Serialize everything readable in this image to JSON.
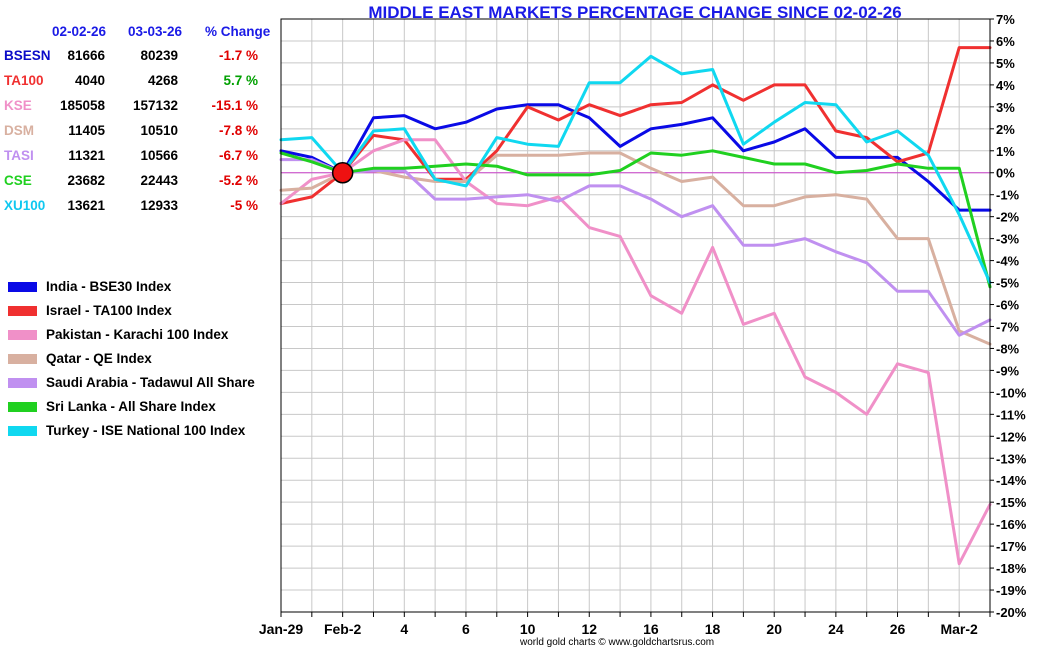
{
  "title": "MIDDLE EAST MARKETS PERCENTAGE CHANGE SINCE 02-02-26",
  "credit": "world gold charts © www.goldchartsrus.com",
  "stats": {
    "headers": {
      "d1": "02-02-26",
      "d2": "03-03-26",
      "pct": "% Change"
    },
    "rows": [
      {
        "symbol": "BSESN",
        "v1": "81666",
        "v2": "80239",
        "pct": "-1.7 %",
        "color": "#0a0ac8",
        "pct_color": "#e00000"
      },
      {
        "symbol": "TA100",
        "v1": "4040",
        "v2": "4268",
        "pct": "5.7 %",
        "color": "#f03030",
        "pct_color": "#00a000"
      },
      {
        "symbol": "KSE",
        "v1": "185058",
        "v2": "157132",
        "pct": "-15.1 %",
        "color": "#f090c8",
        "pct_color": "#e00000"
      },
      {
        "symbol": "DSM",
        "v1": "11405",
        "v2": "10510",
        "pct": "-7.8 %",
        "color": "#d8b0a0",
        "pct_color": "#e00000"
      },
      {
        "symbol": "TASI",
        "v1": "11321",
        "v2": "10566",
        "pct": "-6.7 %",
        "color": "#c090f0",
        "pct_color": "#e00000"
      },
      {
        "symbol": "CSE",
        "v1": "23682",
        "v2": "22443",
        "pct": "-5.2 %",
        "color": "#20d020",
        "pct_color": "#e00000"
      },
      {
        "symbol": "XU100",
        "v1": "13621",
        "v2": "12933",
        "pct": "-5 %",
        "color": "#10c8f0",
        "pct_color": "#e00000"
      }
    ]
  },
  "legend": [
    {
      "label": "India - BSE30 Index",
      "color": "#0a0ae6"
    },
    {
      "label": "Israel - TA100 Index",
      "color": "#f03030"
    },
    {
      "label": "Pakistan - Karachi 100 Index",
      "color": "#f090c8"
    },
    {
      "label": "Qatar - QE Index",
      "color": "#d8b0a0"
    },
    {
      "label": "Saudi Arabia - Tadawul All Share",
      "color": "#c090f0"
    },
    {
      "label": "Sri Lanka - All Share Index",
      "color": "#20d020"
    },
    {
      "label": "Turkey - ISE National 100 Index",
      "color": "#10d8f0"
    }
  ],
  "chart_data": {
    "type": "line",
    "title": "MIDDLE EAST MARKETS PERCENTAGE CHANGE SINCE 02-02-26",
    "xlabel": "",
    "ylabel": "",
    "x_range": [
      0,
      23
    ],
    "ylim": [
      -20,
      7
    ],
    "y_ticks": [
      7,
      6,
      5,
      4,
      3,
      2,
      1,
      0,
      -1,
      -2,
      -3,
      -4,
      -5,
      -6,
      -7,
      -8,
      -9,
      -10,
      -11,
      -12,
      -13,
      -14,
      -15,
      -16,
      -17,
      -18,
      -19,
      -20
    ],
    "y_tick_labels": [
      "7%",
      "6%",
      "5%",
      "4%",
      "3%",
      "2%",
      "1%",
      "0%",
      "-1%",
      "-2%",
      "-3%",
      "-4%",
      "-5%",
      "-6%",
      "-7%",
      "-8%",
      "-9%",
      "-10%",
      "-11%",
      "-12%",
      "-13%",
      "-14%",
      "-15%",
      "-16%",
      "-17%",
      "-18%",
      "-19%",
      "-20%"
    ],
    "x_ticks": [
      {
        "x": 0,
        "label": "Jan-29"
      },
      {
        "x": 2,
        "label": "Feb-2"
      },
      {
        "x": 4,
        "label": "4"
      },
      {
        "x": 6,
        "label": "6"
      },
      {
        "x": 8,
        "label": "10"
      },
      {
        "x": 10,
        "label": "12"
      },
      {
        "x": 12,
        "label": "16"
      },
      {
        "x": 14,
        "label": "18"
      },
      {
        "x": 16,
        "label": "20"
      },
      {
        "x": 18,
        "label": "24"
      },
      {
        "x": 20,
        "label": "26"
      },
      {
        "x": 22,
        "label": "Mar-2"
      }
    ],
    "origin_marker": {
      "x": 2,
      "y": 0
    },
    "zero_line_color": "#cc44cc",
    "grid": true,
    "legend_position": "left",
    "series": [
      {
        "name": "India - BSE30 Index",
        "color": "#0a0ae6",
        "values": [
          1.0,
          0.7,
          0.0,
          2.5,
          2.6,
          2.0,
          2.3,
          2.9,
          3.1,
          3.1,
          2.5,
          1.2,
          2.0,
          2.2,
          2.5,
          1.0,
          1.4,
          2.0,
          0.7,
          0.7,
          0.7,
          -0.4,
          -1.7,
          -1.7
        ]
      },
      {
        "name": "Israel - TA100 Index",
        "color": "#f03030",
        "values": [
          -1.4,
          -1.1,
          0.0,
          1.7,
          1.5,
          -0.3,
          -0.3,
          1.0,
          3.0,
          2.4,
          3.1,
          2.6,
          3.1,
          3.2,
          4.0,
          3.3,
          4.0,
          4.0,
          1.9,
          1.6,
          0.5,
          0.9,
          5.7,
          5.7
        ]
      },
      {
        "name": "Pakistan - Karachi 100 Index",
        "color": "#f090c8",
        "values": [
          -1.4,
          -0.3,
          0.0,
          1.0,
          1.5,
          1.5,
          -0.4,
          -1.4,
          -1.5,
          -1.1,
          -2.5,
          -2.9,
          -5.6,
          -6.4,
          -3.4,
          -6.9,
          -6.4,
          -9.3,
          -10.0,
          -11.0,
          -8.7,
          -9.1,
          -17.8,
          -15.1
        ]
      },
      {
        "name": "Qatar - QE Index",
        "color": "#d8b0a0",
        "values": [
          -0.8,
          -0.7,
          0.0,
          0.1,
          -0.2,
          -0.4,
          -0.4,
          0.8,
          0.8,
          0.8,
          0.9,
          0.9,
          0.2,
          -0.4,
          -0.2,
          -1.5,
          -1.5,
          -1.1,
          -1.0,
          -1.2,
          -3.0,
          -3.0,
          -7.2,
          -7.8
        ]
      },
      {
        "name": "Saudi Arabia - Tadawul All Share",
        "color": "#c090f0",
        "values": [
          0.6,
          0.6,
          0.0,
          0.1,
          0.1,
          -1.2,
          -1.2,
          -1.1,
          -1.0,
          -1.3,
          -0.6,
          -0.6,
          -1.2,
          -2.0,
          -1.5,
          -3.3,
          -3.3,
          -3.0,
          -3.6,
          -4.1,
          -5.4,
          -5.4,
          -7.4,
          -6.7
        ]
      },
      {
        "name": "Sri Lanka - All Share Index",
        "color": "#20d020",
        "values": [
          0.9,
          0.5,
          0.0,
          0.2,
          0.2,
          0.3,
          0.4,
          0.3,
          -0.1,
          -0.1,
          -0.1,
          0.1,
          0.9,
          0.8,
          1.0,
          0.7,
          0.4,
          0.4,
          0.0,
          0.1,
          0.4,
          0.2,
          0.2,
          -5.2
        ]
      },
      {
        "name": "Turkey - ISE National 100 Index",
        "color": "#10d8f0",
        "values": [
          1.5,
          1.6,
          0.0,
          1.9,
          2.0,
          -0.3,
          -0.6,
          1.6,
          1.3,
          1.2,
          4.1,
          4.1,
          5.3,
          4.5,
          4.7,
          1.3,
          2.3,
          3.2,
          3.1,
          1.4,
          1.9,
          0.8,
          -1.9,
          -5.0
        ]
      }
    ]
  }
}
